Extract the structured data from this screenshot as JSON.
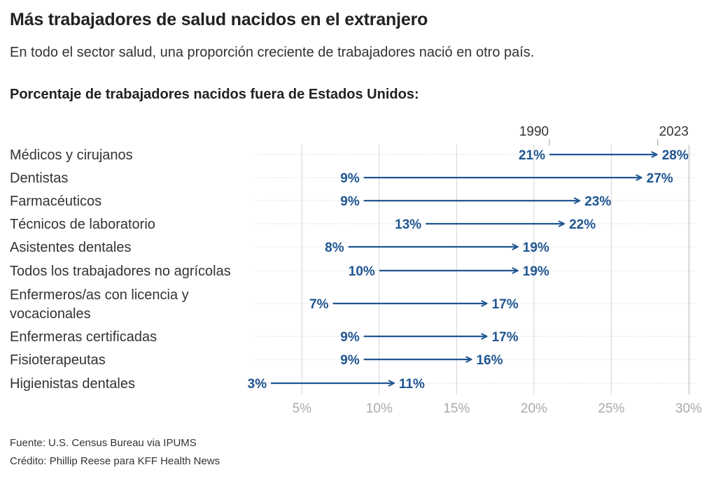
{
  "title": "Más trabajadores de salud nacidos en el extranjero",
  "subtitle": "En todo el sector salud, una proporción creciente de trabajadores nació en otro país.",
  "chart_title": "Porcentaje de trabajadores nacidos fuera de Estados Unidos:",
  "source": "Fuente: U.S. Census Bureau via IPUMS",
  "credit": "Crédito: Phillip Reese para KFF Health News",
  "colors": {
    "arrow": "#1f5591",
    "grid": "#d4d4d4",
    "tick": "#aaaaaa"
  },
  "chart_data": {
    "type": "arrow",
    "series": [
      {
        "name": "1990",
        "values": [
          21,
          9,
          9,
          13,
          8,
          10,
          7,
          9,
          9,
          3
        ]
      },
      {
        "name": "2023",
        "values": [
          28,
          27,
          23,
          22,
          19,
          19,
          17,
          17,
          16,
          11
        ]
      }
    ],
    "categories": [
      [
        "Médicos y cirujanos"
      ],
      [
        "Dentistas"
      ],
      [
        "Farmacéuticos"
      ],
      [
        "Técnicos de laboratorio"
      ],
      [
        "Asistentes dentales"
      ],
      [
        "Todos los trabajadores no agrícolas"
      ],
      [
        "Enfermeros/as con licencia y",
        "vocacionales"
      ],
      [
        "Enfermeras certificadas"
      ],
      [
        "Fisioterapeutas"
      ],
      [
        "Higienistas dentales"
      ]
    ],
    "x_ticks": [
      5,
      10,
      15,
      20,
      25,
      30
    ],
    "x_tick_labels": [
      "5%",
      "10%",
      "15%",
      "20%",
      "25%",
      "30%"
    ],
    "xlim": [
      2,
      30.5
    ],
    "value_suffix": "%",
    "grid": true
  }
}
